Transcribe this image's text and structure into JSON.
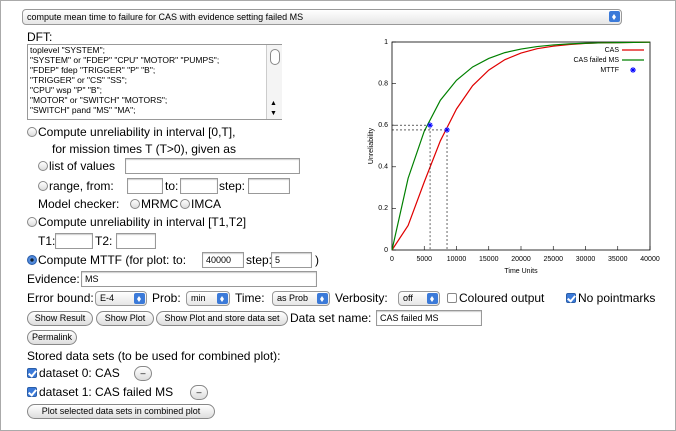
{
  "selector": "compute mean time to failure for CAS with evidence setting failed MS",
  "dft": {
    "label": "DFT:",
    "lines": [
      "toplevel \"SYSTEM\";",
      "\"SYSTEM\" or \"FDEP\" \"CPU\" \"MOTOR\" \"PUMPS\";",
      "\"FDEP\" fdep \"TRIGGER\" \"P\" \"B\";",
      "\"TRIGGER\" or \"CS\" \"SS\";",
      "\"CPU\" wsp \"P\" \"B\";",
      "\"MOTOR\" or \"SWITCH\" \"MOTORS\";",
      "\"SWITCH\" pand \"MS\" \"MA\";"
    ]
  },
  "unreliability": {
    "option": "Compute unreliability in interval [0,T],",
    "hint": "for mission times T (T>0), given as",
    "list": "list of values",
    "range": "range, from:",
    "to": "to:",
    "step": "step:",
    "checker": "Model checker:",
    "mrmc": "MRMC",
    "imca": "IMCA"
  },
  "interval": {
    "option": "Compute unreliability in interval [T1,T2]",
    "t1": "T1:",
    "t2": "T2:"
  },
  "mttf": {
    "option": "Compute MTTF (for plot: to:",
    "to_value": "40000",
    "step": "step:",
    "step_value": "5",
    "close": ")"
  },
  "evidence": {
    "label": "Evidence:",
    "value": "MS"
  },
  "settings": {
    "error_bound": "Error bound:",
    "error_value": "E-4",
    "prob": "Prob:",
    "prob_value": "min",
    "time": "Time:",
    "time_value": "as Prob",
    "verbosity": "Verbosity:",
    "verbosity_value": "off",
    "coloured": "Coloured output",
    "pointmarks": "No pointmarks"
  },
  "buttons": {
    "show_result": "Show Result",
    "show_plot": "Show Plot",
    "store": "Show Plot and store data set",
    "name_label": "Data set name:",
    "name_value": "CAS failed MS",
    "permalink": "Permalink"
  },
  "stored": {
    "title": "Stored data sets (to be used for combined plot):",
    "sets": [
      "dataset 0: CAS",
      "dataset 1: CAS failed MS"
    ],
    "remove": "–",
    "combine": "Plot selected data sets in combined plot"
  },
  "chart_data": {
    "type": "line",
    "x_label": "Time Units",
    "y_label": "Unreliability",
    "x": [
      0,
      2500,
      5000,
      7500,
      10000,
      12500,
      15000,
      17500,
      20000,
      22500,
      25000,
      27500,
      30000,
      32500,
      35000,
      37500,
      40000
    ],
    "series": [
      {
        "name": "CAS",
        "color": "#e00000",
        "values": [
          0,
          0.118,
          0.327,
          0.525,
          0.678,
          0.79,
          0.865,
          0.915,
          0.947,
          0.968,
          0.98,
          0.988,
          0.993,
          0.996,
          0.997,
          0.998,
          0.999
        ]
      },
      {
        "name": "CAS failed MS",
        "color": "#008000",
        "values": [
          0,
          0.345,
          0.571,
          0.72,
          0.816,
          0.88,
          0.921,
          0.949,
          0.966,
          0.978,
          0.986,
          0.991,
          0.994,
          0.996,
          0.997,
          0.998,
          0.999
        ]
      },
      {
        "name": "MTTF",
        "color": "#0000ff",
        "x": [
          8530,
          5900
        ],
        "values": [
          0.577,
          0.6
        ]
      }
    ],
    "xlim": [
      0,
      40000
    ],
    "ylim": [
      0,
      1
    ],
    "xticks": [
      0,
      5000,
      10000,
      15000,
      20000,
      25000,
      30000,
      35000,
      40000
    ],
    "yticks": [
      0,
      0.2,
      0.4,
      0.6,
      0.8,
      1
    ],
    "legend": "upper right"
  }
}
